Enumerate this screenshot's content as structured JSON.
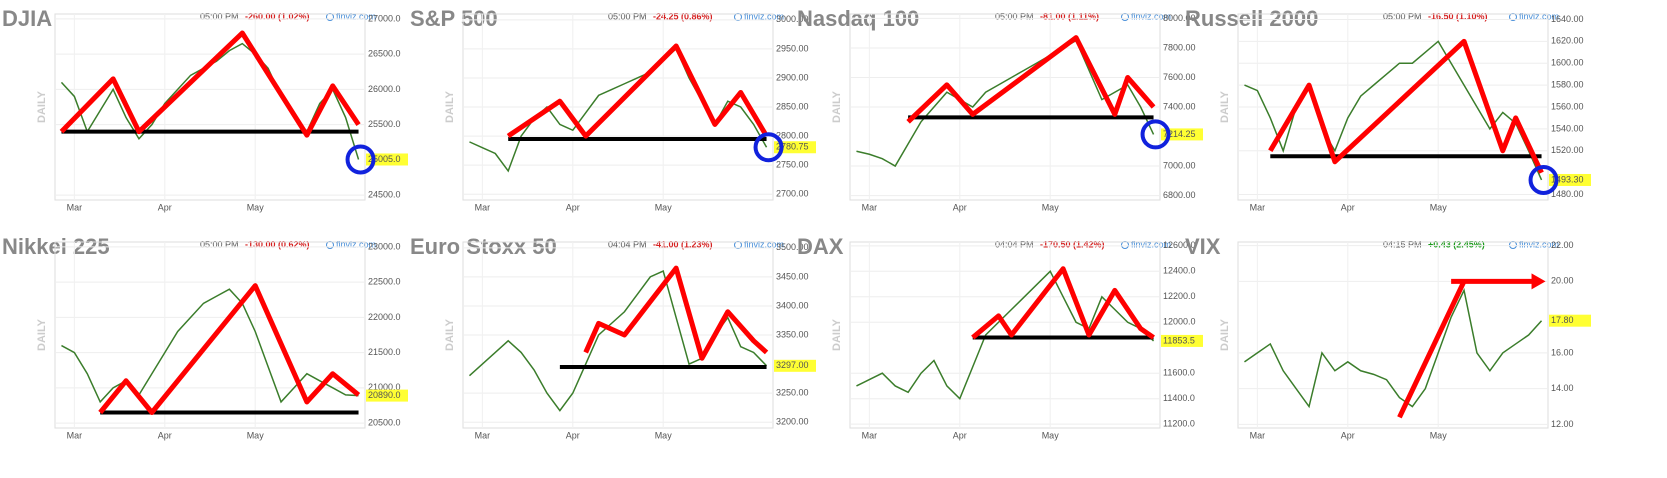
{
  "chart_data": [
    {
      "type": "line",
      "title": "DJIA",
      "time": "05:00 PM",
      "change": "-260.00 (1.02%)",
      "change_color": "#d62020",
      "source": "finviz.com",
      "side_label": "DAILY",
      "color": "#3b7d2b",
      "categories": [
        null,
        "Mar",
        null,
        null,
        null,
        null,
        null,
        null,
        "Apr",
        null,
        null,
        null,
        null,
        null,
        null,
        "May",
        null,
        null,
        null,
        null,
        null,
        null,
        null,
        null
      ],
      "values": [
        26100,
        25900,
        25400,
        25700,
        26000,
        25600,
        25300,
        25500,
        25800,
        26000,
        26200,
        26300,
        26400,
        26550,
        26650,
        26500,
        26300,
        25900,
        25600,
        25400,
        25800,
        26000,
        25600,
        25005
      ],
      "ylim": [
        24430,
        27070
      ],
      "yticks": [
        {
          "value": 24500,
          "label": "24500.0"
        },
        {
          "value": 25500,
          "label": "25500.0"
        },
        {
          "value": 26000,
          "label": "26000.0"
        },
        {
          "value": 26500,
          "label": "26500.0"
        },
        {
          "value": 27000,
          "label": "27000.0"
        }
      ],
      "last_price": {
        "value": 25005,
        "label": "25005.0"
      },
      "trend": [
        [
          0,
          25400
        ],
        [
          4,
          26150
        ],
        [
          6,
          25400
        ],
        [
          14,
          26800
        ],
        [
          19,
          25350
        ],
        [
          21,
          26050
        ],
        [
          23,
          25500
        ]
      ],
      "support": {
        "value": 25400,
        "from": 0,
        "to": 23
      },
      "circle": true,
      "grid": true
    },
    {
      "type": "line",
      "title": "S&P 500",
      "time": "05:00 PM",
      "change": "-24.25 (0.86%)",
      "change_color": "#d62020",
      "source": "finviz.com",
      "side_label": "DAILY",
      "color": "#3b7d2b",
      "categories": [
        null,
        "Mar",
        null,
        null,
        null,
        null,
        null,
        null,
        "Apr",
        null,
        null,
        null,
        null,
        null,
        null,
        "May",
        null,
        null,
        null,
        null,
        null,
        null,
        null,
        null
      ],
      "values": [
        2790,
        2780,
        2770,
        2740,
        2800,
        2830,
        2850,
        2820,
        2810,
        2840,
        2870,
        2880,
        2890,
        2900,
        2910,
        2930,
        2950,
        2900,
        2860,
        2820,
        2860,
        2850,
        2820,
        2780.75
      ],
      "ylim": [
        2690,
        3010
      ],
      "yticks": [
        {
          "value": 2700,
          "label": "2700.00"
        },
        {
          "value": 2750,
          "label": "2750.00"
        },
        {
          "value": 2800,
          "label": "2800.00"
        },
        {
          "value": 2850,
          "label": "2850.00"
        },
        {
          "value": 2900,
          "label": "2900.00"
        },
        {
          "value": 2950,
          "label": "2950.00"
        },
        {
          "value": 3000,
          "label": "3000.00"
        }
      ],
      "last_price": {
        "value": 2780.75,
        "label": "2780.75"
      },
      "trend": [
        [
          3,
          2800
        ],
        [
          7,
          2860
        ],
        [
          9,
          2800
        ],
        [
          16,
          2955
        ],
        [
          19,
          2820
        ],
        [
          21,
          2875
        ],
        [
          23,
          2800
        ]
      ],
      "support": {
        "value": 2795,
        "from": 3,
        "to": 23
      },
      "circle": true,
      "grid": true
    },
    {
      "type": "line",
      "title": "Nasdaq 100",
      "time": "05:00 PM",
      "change": "-81.00 (1.11%)",
      "change_color": "#d62020",
      "source": "finviz.com",
      "side_label": "DAILY",
      "color": "#3b7d2b",
      "categories": [
        null,
        "Mar",
        null,
        null,
        null,
        null,
        null,
        null,
        "Apr",
        null,
        null,
        null,
        null,
        null,
        null,
        "May",
        null,
        null,
        null,
        null,
        null,
        null,
        null,
        null
      ],
      "values": [
        7100,
        7080,
        7050,
        7000,
        7150,
        7300,
        7400,
        7500,
        7450,
        7400,
        7500,
        7550,
        7600,
        7650,
        7700,
        7750,
        7800,
        7850,
        7650,
        7450,
        7500,
        7550,
        7400,
        7214.25
      ],
      "ylim": [
        6770,
        8030
      ],
      "yticks": [
        {
          "value": 6800,
          "label": "6800.00"
        },
        {
          "value": 7000,
          "label": "7000.00"
        },
        {
          "value": 7400,
          "label": "7400.00"
        },
        {
          "value": 7600,
          "label": "7600.00"
        },
        {
          "value": 7800,
          "label": "7800.00"
        },
        {
          "value": 8000,
          "label": "8000.00"
        }
      ],
      "last_price": {
        "value": 7214.25,
        "label": "7214.25"
      },
      "trend": [
        [
          4,
          7300
        ],
        [
          7,
          7550
        ],
        [
          9,
          7350
        ],
        [
          17,
          7870
        ],
        [
          20,
          7350
        ],
        [
          21,
          7600
        ],
        [
          23,
          7400
        ]
      ],
      "support": {
        "value": 7330,
        "from": 4,
        "to": 23
      },
      "circle": true,
      "grid": true
    },
    {
      "type": "line",
      "title": "Russell 2000",
      "time": "05:00 PM",
      "change": "-16.50 (1.10%)",
      "change_color": "#d62020",
      "source": "finviz.com",
      "side_label": "DAILY",
      "color": "#3b7d2b",
      "categories": [
        null,
        "Mar",
        null,
        null,
        null,
        null,
        null,
        null,
        "Apr",
        null,
        null,
        null,
        null,
        null,
        null,
        "May",
        null,
        null,
        null,
        null,
        null,
        null,
        null,
        null
      ],
      "values": [
        1580,
        1575,
        1550,
        1520,
        1560,
        1580,
        1540,
        1520,
        1550,
        1570,
        1580,
        1590,
        1600,
        1600,
        1610,
        1620,
        1600,
        1580,
        1560,
        1540,
        1555,
        1545,
        1520,
        1493.3
      ],
      "ylim": [
        1475,
        1645
      ],
      "yticks": [
        {
          "value": 1480,
          "label": "1480.00"
        },
        {
          "value": 1520,
          "label": "1520.00"
        },
        {
          "value": 1540,
          "label": "1540.00"
        },
        {
          "value": 1560,
          "label": "1560.00"
        },
        {
          "value": 1580,
          "label": "1580.00"
        },
        {
          "value": 1600,
          "label": "1600.00"
        },
        {
          "value": 1620,
          "label": "1620.00"
        },
        {
          "value": 1640,
          "label": "1640.00"
        }
      ],
      "last_price": {
        "value": 1493.3,
        "label": "1493.30"
      },
      "trend": [
        [
          2,
          1520
        ],
        [
          5,
          1580
        ],
        [
          7,
          1510
        ],
        [
          17,
          1620
        ],
        [
          20,
          1520
        ],
        [
          21,
          1550
        ],
        [
          23,
          1500
        ]
      ],
      "support": {
        "value": 1515,
        "from": 2,
        "to": 23
      },
      "circle": true,
      "grid": true
    },
    {
      "type": "line",
      "title": "Nikkei 225",
      "time": "05:00 PM",
      "change": "-130.00 (0.62%)",
      "change_color": "#d62020",
      "source": "finviz.com",
      "side_label": "DAILY",
      "color": "#3b7d2b",
      "categories": [
        null,
        "Mar",
        null,
        null,
        null,
        null,
        null,
        null,
        "Apr",
        null,
        null,
        null,
        null,
        null,
        null,
        "May",
        null,
        null,
        null,
        null,
        null,
        null,
        null,
        null
      ],
      "values": [
        21600,
        21500,
        21200,
        20800,
        21000,
        21100,
        20900,
        21200,
        21500,
        21800,
        22000,
        22200,
        22300,
        22400,
        22200,
        21800,
        21300,
        20800,
        21000,
        21200,
        21100,
        21000,
        20900,
        20890
      ],
      "ylim": [
        20430,
        23070
      ],
      "yticks": [
        {
          "value": 20500,
          "label": "20500.0"
        },
        {
          "value": 21000,
          "label": "21000.0"
        },
        {
          "value": 21500,
          "label": "21500.0"
        },
        {
          "value": 22000,
          "label": "22000.0"
        },
        {
          "value": 22500,
          "label": "22500.0"
        },
        {
          "value": 23000,
          "label": "23000.0"
        }
      ],
      "last_price": {
        "value": 20890,
        "label": "20890.0"
      },
      "trend": [
        [
          3,
          20650
        ],
        [
          5,
          21100
        ],
        [
          7,
          20650
        ],
        [
          15,
          22450
        ],
        [
          19,
          20800
        ],
        [
          21,
          21200
        ],
        [
          23,
          20900
        ]
      ],
      "support": {
        "value": 20650,
        "from": 3,
        "to": 23
      },
      "circle": false,
      "grid": true
    },
    {
      "type": "line",
      "title": "Euro Stoxx 50",
      "time": "04:04 PM",
      "change": "-41.00 (1.23%)",
      "change_color": "#d62020",
      "source": "finviz.com",
      "side_label": "DAILY",
      "color": "#3b7d2b",
      "categories": [
        null,
        "Mar",
        null,
        null,
        null,
        null,
        null,
        null,
        "Apr",
        null,
        null,
        null,
        null,
        null,
        null,
        "May",
        null,
        null,
        null,
        null,
        null,
        null,
        null,
        null
      ],
      "values": [
        3280,
        3300,
        3320,
        3340,
        3320,
        3290,
        3250,
        3220,
        3250,
        3300,
        3350,
        3370,
        3390,
        3420,
        3450,
        3460,
        3380,
        3300,
        3310,
        3350,
        3380,
        3330,
        3320,
        3297
      ],
      "ylim": [
        3190,
        3510
      ],
      "yticks": [
        {
          "value": 3200,
          "label": "3200.00"
        },
        {
          "value": 3250,
          "label": "3250.00"
        },
        {
          "value": 3350,
          "label": "3350.00"
        },
        {
          "value": 3400,
          "label": "3400.00"
        },
        {
          "value": 3450,
          "label": "3450.00"
        },
        {
          "value": 3500,
          "label": "3500.00"
        }
      ],
      "last_price": {
        "value": 3297,
        "label": "3297.00"
      },
      "trend": [
        [
          9,
          3320
        ],
        [
          10,
          3370
        ],
        [
          12,
          3350
        ],
        [
          16,
          3465
        ],
        [
          18,
          3310
        ],
        [
          20,
          3390
        ],
        [
          22,
          3340
        ],
        [
          23,
          3320
        ]
      ],
      "support": {
        "value": 3295,
        "from": 7,
        "to": 23
      },
      "circle": false,
      "grid": true
    },
    {
      "type": "line",
      "title": "DAX",
      "time": "04:04 PM",
      "change": "-170.50 (1.42%)",
      "change_color": "#d62020",
      "source": "finviz.com",
      "side_label": "DAILY",
      "color": "#3b7d2b",
      "categories": [
        null,
        "Mar",
        null,
        null,
        null,
        null,
        null,
        null,
        "Apr",
        null,
        null,
        null,
        null,
        null,
        null,
        "May",
        null,
        null,
        null,
        null,
        null,
        null,
        null,
        null
      ],
      "values": [
        11500,
        11550,
        11600,
        11500,
        11450,
        11600,
        11700,
        11500,
        11400,
        11650,
        11900,
        12000,
        12100,
        12200,
        12300,
        12400,
        12200,
        12000,
        11950,
        12200,
        12100,
        12000,
        11950,
        11853.5
      ],
      "ylim": [
        11170,
        12630
      ],
      "yticks": [
        {
          "value": 11200,
          "label": "11200.0"
        },
        {
          "value": 11400,
          "label": "11400.0"
        },
        {
          "value": 11600,
          "label": "11600.0"
        },
        {
          "value": 12000,
          "label": "12000.0"
        },
        {
          "value": 12200,
          "label": "12200.0"
        },
        {
          "value": 12400,
          "label": "12400.0"
        },
        {
          "value": 12600,
          "label": "12600.0"
        }
      ],
      "last_price": {
        "value": 11853.5,
        "label": "11853.5"
      },
      "trend": [
        [
          9,
          11880
        ],
        [
          11,
          12050
        ],
        [
          12,
          11900
        ],
        [
          16,
          12420
        ],
        [
          18,
          11900
        ],
        [
          20,
          12250
        ],
        [
          22,
          11950
        ],
        [
          23,
          11880
        ]
      ],
      "support": {
        "value": 11880,
        "from": 9,
        "to": 23
      },
      "circle": false,
      "grid": true
    },
    {
      "type": "line",
      "title": "VIX",
      "time": "04:15 PM",
      "change": "+0.43 (2.45%)",
      "change_color": "#1a9a1a",
      "source": "finviz.com",
      "side_label": "DAILY",
      "color": "#3b7d2b",
      "categories": [
        null,
        "Mar",
        null,
        null,
        null,
        null,
        null,
        null,
        "Apr",
        null,
        null,
        null,
        null,
        null,
        null,
        "May",
        null,
        null,
        null,
        null,
        null,
        null,
        null,
        null
      ],
      "values": [
        15.5,
        16,
        16.5,
        15,
        14,
        13,
        16,
        15,
        15.5,
        15,
        14.8,
        14.5,
        13.5,
        13,
        14,
        16,
        18,
        19.5,
        16,
        15,
        16,
        16.5,
        17,
        17.8
      ],
      "ylim": [
        11.8,
        22.2
      ],
      "yticks": [
        {
          "value": 12,
          "label": "12.00"
        },
        {
          "value": 14,
          "label": "14.00"
        },
        {
          "value": 16,
          "label": "16.00"
        },
        {
          "value": 20,
          "label": "20.00"
        },
        {
          "value": 22,
          "label": "22.00"
        }
      ],
      "last_price": {
        "value": 17.8,
        "label": "17.80"
      },
      "trend": [
        [
          12,
          12.4
        ],
        [
          17,
          20
        ]
      ],
      "arrow": {
        "value": 20,
        "from": 16,
        "to": 23
      },
      "circle": false,
      "grid": true
    }
  ]
}
